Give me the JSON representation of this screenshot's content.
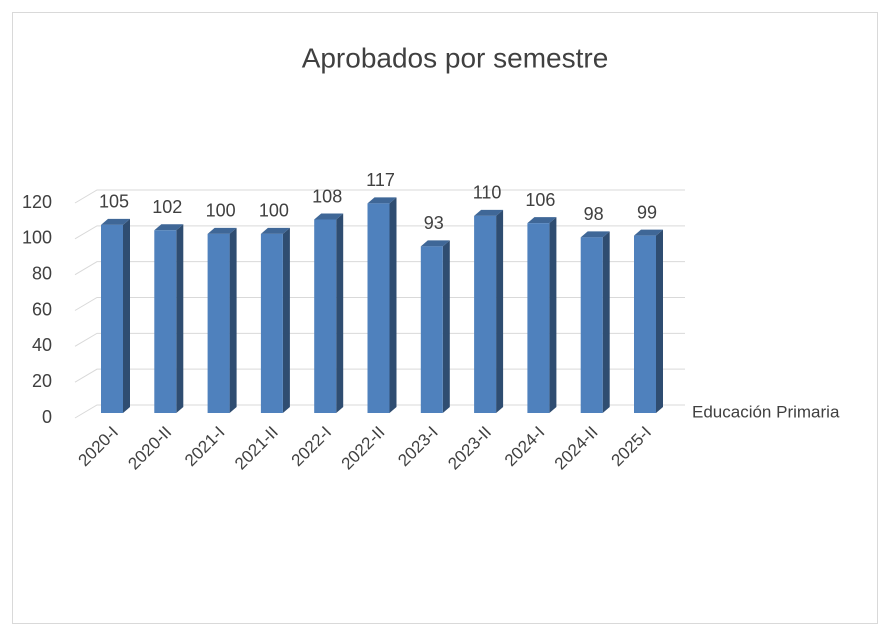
{
  "chart_data": {
    "type": "bar",
    "title": "Aprobados por semestre",
    "categories": [
      "2020-I",
      "2020-II",
      "2021-I",
      "2021-II",
      "2022-I",
      "2022-II",
      "2023-I",
      "2023-II",
      "2024-I",
      "2024-II",
      "2025-I"
    ],
    "series": [
      {
        "name": "Educación Primaria",
        "color": "#4f81bd",
        "values": [
          105,
          102,
          100,
          100,
          108,
          117,
          93,
          110,
          106,
          98,
          99
        ]
      }
    ],
    "ylim": [
      0,
      120
    ],
    "yticks": [
      0,
      20,
      40,
      60,
      80,
      100,
      120
    ],
    "grid": true,
    "legend": "right"
  }
}
